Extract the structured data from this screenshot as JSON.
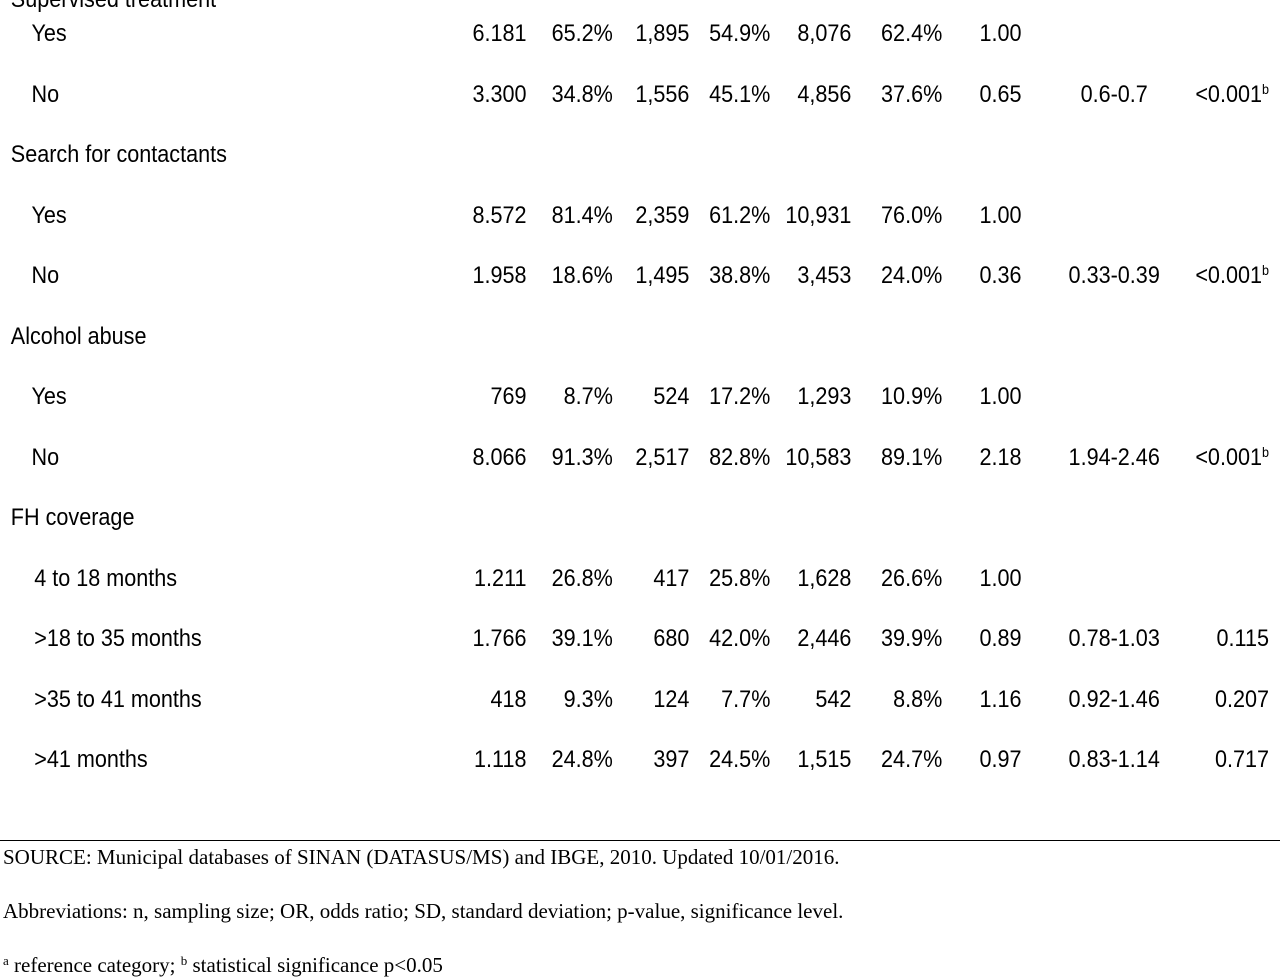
{
  "table": {
    "sections": [
      {
        "heading": "Supervised treatment",
        "rows": [
          {
            "label": "Yes",
            "values": [
              "6.181",
              "65.2%",
              "1,895",
              "54.9%",
              "8,076",
              "62.4%",
              "1.00",
              "",
              ""
            ],
            "p_sup": ""
          },
          {
            "label": "No",
            "values": [
              "3.300",
              "34.8%",
              "1,556",
              "45.1%",
              "4,856",
              "37.6%",
              "0.65",
              "0.6-0.7",
              "<0.001"
            ],
            "p_sup": "b"
          }
        ]
      },
      {
        "heading": "Search for contactants",
        "rows": [
          {
            "label": "Yes",
            "values": [
              "8.572",
              "81.4%",
              "2,359",
              "61.2%",
              "10,931",
              "76.0%",
              "1.00",
              "",
              ""
            ],
            "p_sup": ""
          },
          {
            "label": "No",
            "values": [
              "1.958",
              "18.6%",
              "1,495",
              "38.8%",
              "3,453",
              "24.0%",
              "0.36",
              "0.33-0.39",
              "<0.001"
            ],
            "p_sup": "b"
          }
        ]
      },
      {
        "heading": "Alcohol abuse",
        "rows": [
          {
            "label": "Yes",
            "values": [
              "769",
              "8.7%",
              "524",
              "17.2%",
              "1,293",
              "10.9%",
              "1.00",
              "",
              ""
            ],
            "p_sup": ""
          },
          {
            "label": "No",
            "values": [
              "8.066",
              "91.3%",
              "2,517",
              "82.8%",
              "10,583",
              "89.1%",
              "2.18",
              "1.94-2.46",
              "<0.001"
            ],
            "p_sup": "b"
          }
        ]
      },
      {
        "heading": "FH coverage",
        "rows": [
          {
            "label": "4 to 18 months",
            "values": [
              "1.211",
              "26.8%",
              "417",
              "25.8%",
              "1,628",
              "26.6%",
              "1.00",
              "",
              ""
            ],
            "p_sup": ""
          },
          {
            "label": ">18 to 35 months",
            "values": [
              "1.766",
              "39.1%",
              "680",
              "42.0%",
              "2,446",
              "39.9%",
              "0.89",
              "0.78-1.03",
              "0.115"
            ],
            "p_sup": ""
          },
          {
            "label": ">35 to 41 months",
            "values": [
              "418",
              "9.3%",
              "124",
              "7.7%",
              "542",
              "8.8%",
              "1.16",
              "0.92-1.46",
              "0.207"
            ],
            "p_sup": ""
          },
          {
            "label": ">41 months",
            "values": [
              "1.118",
              "24.8%",
              "397",
              "24.5%",
              "1,515",
              "24.7%",
              "0.97",
              "0.83-1.14",
              "0.717"
            ],
            "p_sup": ""
          }
        ]
      }
    ]
  },
  "footnotes": {
    "source": "SOURCE: Municipal databases of SINAN (DATASUS/MS) and IBGE, 2010. Updated 10/01/2016.",
    "abbreviations": "Abbreviations: n, sampling size; OR, odds ratio; SD, standard deviation; p-value, significance level.",
    "ref_marker": "a",
    "ref_text": " reference category; ",
    "sig_marker": "b",
    "sig_text": " statistical significance p<0.05"
  }
}
